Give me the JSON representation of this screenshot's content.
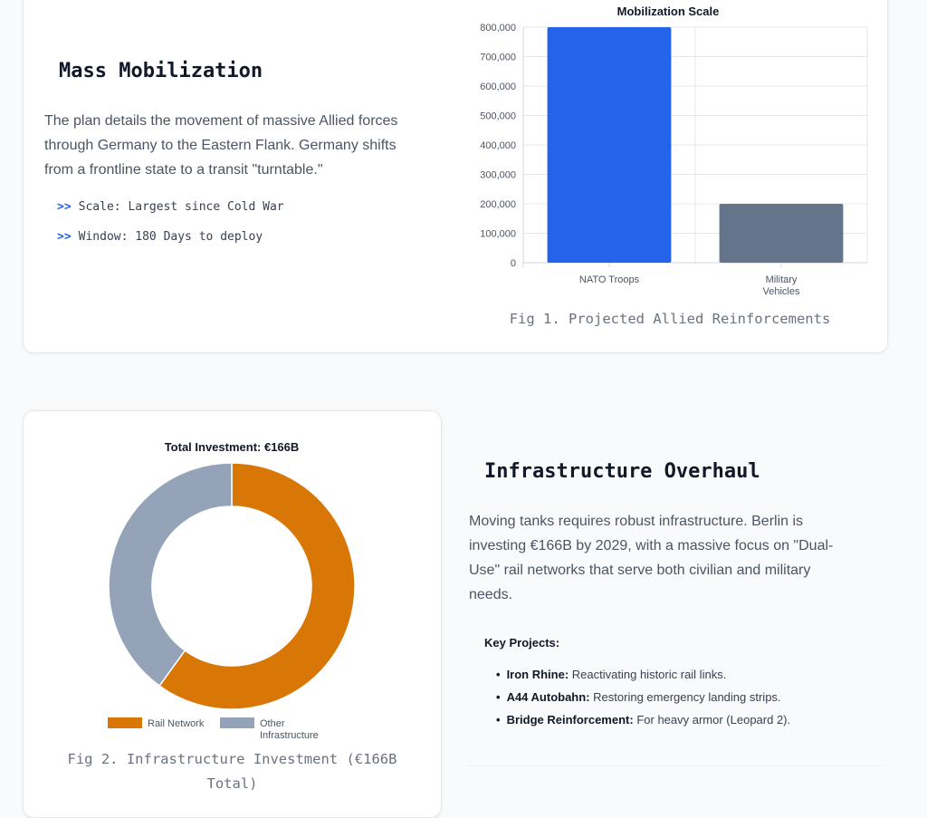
{
  "section1": {
    "title": "Mass Mobilization",
    "body_lines": [
      "The plan details the movement of massive Allied forces",
      "through Germany to the Eastern Flank. Germany shifts",
      "from a frontline state to a transit \"turntable.\""
    ],
    "bullet_marker": ">>",
    "bullets": [
      "Scale: Largest since Cold War",
      "Window: 180 Days to deploy"
    ],
    "caption": "Fig 1. Projected Allied Reinforcements"
  },
  "section2": {
    "title": "Infrastructure Overhaul",
    "body_lines": [
      "Moving tanks requires robust infrastructure. Berlin is",
      "investing €166B by 2029, with a massive focus on \"Dual-",
      "Use\" rail networks that serve both civilian and military",
      "needs."
    ],
    "key_projects_title": "Key Projects:",
    "projects": [
      {
        "name": "Iron Rhine:",
        "desc": "Reactivating historic rail links."
      },
      {
        "name": "A44 Autobahn:",
        "desc": "Restoring emergency landing strips."
      },
      {
        "name": "Bridge Reinforcement:",
        "desc": "For heavy armor (Leopard 2)."
      }
    ],
    "bullet_char": "•",
    "caption_lines": [
      "Fig 2. Infrastructure Investment (€166B",
      "Total)"
    ]
  },
  "colors": {
    "troops": "#2563eb",
    "vehicles": "#64748b",
    "rail": "#d97706",
    "other": "#94a3b8",
    "accent": "#2563eb"
  },
  "chart_data": [
    {
      "type": "bar",
      "title": "Mobilization Scale",
      "categories": [
        [
          "NATO Troops"
        ],
        [
          "Military",
          "Vehicles"
        ]
      ],
      "values": [
        800000,
        200000
      ],
      "ylim": [
        0,
        800000
      ],
      "yticks": [
        0,
        100000,
        200000,
        300000,
        400000,
        500000,
        600000,
        700000,
        800000
      ],
      "ytick_labels": [
        "0",
        "100,000",
        "200,000",
        "300,000",
        "400,000",
        "500,000",
        "600,000",
        "700,000",
        "800,000"
      ],
      "grid": true,
      "legend": "none"
    },
    {
      "type": "pie",
      "donut": true,
      "title": "Total Investment: €166B",
      "labels": [
        "Rail Network",
        "Other Infrastructure"
      ],
      "legend_labels": [
        "Rail Network",
        [
          "Other",
          "Infrastructure"
        ]
      ],
      "values": [
        60,
        40
      ],
      "legend": "bottom"
    }
  ]
}
